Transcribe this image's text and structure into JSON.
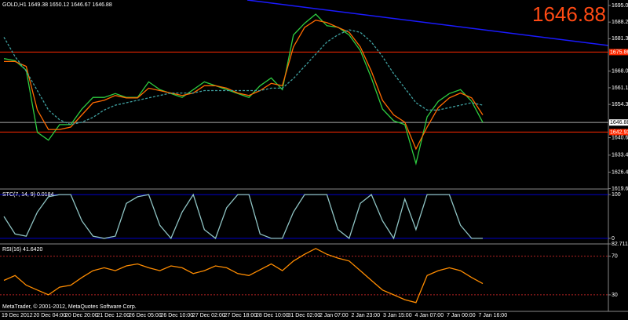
{
  "header": "GOLD,H1  1649.38 1650.12 1646.67 1646.88",
  "price_big": "1646.88",
  "copyright": "MetaTrader, © 2001-2012, MetaQuotes Software Corp.",
  "chart_data": [
    {
      "type": "line",
      "ylim": [
        1619.5,
        1697.3
      ],
      "yticks": [
        1695.05,
        1688.21,
        1681.36,
        1668.02,
        1661.17,
        1654.32,
        1640.62,
        1633.45,
        1626.45,
        1619.65
      ],
      "hlines": [
        1675.86,
        1642.93
      ],
      "hline_color": "#ff2a00",
      "price_line": 1646.88,
      "series": [
        {
          "color": "#2ecc40",
          "values": [
            1673.2,
            1672.3,
            1668.4,
            1642.8,
            1639.6,
            1646.0,
            1646.0,
            1652.4,
            1657.2,
            1657.2,
            1658.8,
            1657.2,
            1657.2,
            1663.6,
            1660.4,
            1658.8,
            1657.2,
            1660.4,
            1663.6,
            1662.0,
            1660.4,
            1658.8,
            1657.2,
            1662.0,
            1665.2,
            1660.4,
            1682.9,
            1687.7,
            1691.5,
            1686.7,
            1686.1,
            1682.9,
            1676.5,
            1665.2,
            1652.4,
            1647.6,
            1646.0,
            1630.0,
            1649.2,
            1655.6,
            1658.8,
            1660.4,
            1655.6,
            1646.9
          ]
        },
        {
          "color": "#ff6a00",
          "values": [
            1672,
            1672,
            1670,
            1652,
            1644,
            1644,
            1645,
            1650,
            1655,
            1656,
            1658,
            1657,
            1657,
            1661,
            1660,
            1659,
            1658,
            1659,
            1662,
            1662,
            1661,
            1659,
            1658,
            1660,
            1663,
            1662,
            1678,
            1686,
            1689,
            1688,
            1686,
            1684,
            1678,
            1668,
            1656,
            1650,
            1647,
            1636,
            1645,
            1653,
            1657,
            1659,
            1657,
            1650
          ]
        },
        {
          "color": "#3fa0a0",
          "dashed": true,
          "values": [
            1682,
            1674,
            1668,
            1660,
            1652,
            1648,
            1646,
            1647,
            1649,
            1652,
            1654,
            1655,
            1656,
            1657,
            1658,
            1659,
            1659,
            1659,
            1660,
            1660,
            1660,
            1660,
            1660,
            1660,
            1661,
            1661,
            1665,
            1670,
            1675,
            1680,
            1683,
            1685,
            1684,
            1680,
            1674,
            1667,
            1661,
            1655,
            1652,
            1652,
            1653,
            1654,
            1655,
            1654
          ]
        }
      ]
    },
    {
      "type": "line",
      "title": "STC(7, 14, 9) 0.0184",
      "ylim": [
        -12.7,
        112.7
      ],
      "yticks": [
        100,
        0
      ],
      "level_color": "#0000cc",
      "series": [
        {
          "color": "#8fc4c4",
          "values": [
            50,
            10,
            5,
            60,
            95,
            100,
            100,
            40,
            5,
            0,
            5,
            80,
            95,
            100,
            30,
            0,
            60,
            100,
            20,
            0,
            70,
            100,
            100,
            10,
            0,
            0,
            60,
            100,
            100,
            100,
            20,
            0,
            80,
            100,
            40,
            0,
            90,
            20,
            100,
            100,
            100,
            30,
            0,
            0.0184
          ]
        }
      ]
    },
    {
      "type": "line",
      "title": "RSI(16) 41.6420",
      "ylim": [
        12.9,
        82.7111
      ],
      "yticks": [
        82.7111,
        70,
        30
      ],
      "levels": [
        70,
        30
      ],
      "level_color": "#b22222",
      "series": [
        {
          "color": "#ff8c00",
          "values": [
            45,
            50,
            40,
            35,
            30,
            38,
            40,
            48,
            55,
            58,
            55,
            60,
            62,
            58,
            55,
            60,
            58,
            52,
            55,
            60,
            58,
            52,
            50,
            56,
            62,
            55,
            65,
            72,
            78,
            72,
            68,
            65,
            55,
            45,
            35,
            30,
            25,
            22,
            50,
            55,
            58,
            55,
            48,
            41.642
          ]
        }
      ],
      "x_labels": [
        "19 Dec 2012",
        "20 Dec 04:00",
        "20 Dec 20:00",
        "21 Dec 12:00",
        "26 Dec 05:00",
        "26 Dec 10:00",
        "27 Dec 02:00",
        "27 Dec 18:00",
        "28 Dec 10:00",
        "31 Dec 02:00",
        "2 Jan 07:00",
        "2 Jan 23:00",
        "3 Jan 15:00",
        "4 Jan 07:00",
        "7 Jan 00:00",
        "7 Jan 16:00"
      ]
    }
  ]
}
